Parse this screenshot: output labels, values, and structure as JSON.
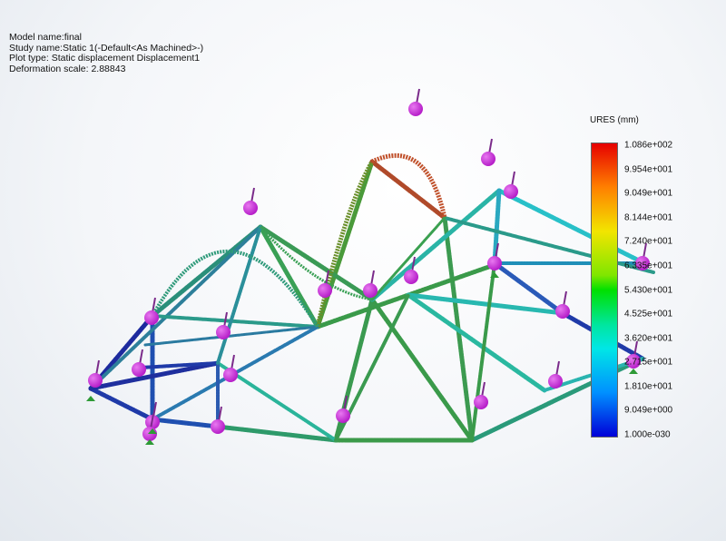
{
  "study_info": {
    "model_name": "Model name:final",
    "study_name": "Study name:Static 1(-Default<As Machined>-)",
    "plot_type": "Plot type: Static displacement Displacement1",
    "deformation_scale": "Deformation scale: 2.88843"
  },
  "legend": {
    "title": "URES (mm)",
    "labels": [
      "1.086e+002",
      "9.954e+001",
      "9.049e+001",
      "8.144e+001",
      "7.240e+001",
      "6.335e+001",
      "5.430e+001",
      "4.525e+001",
      "3.620e+001",
      "2.715e+001",
      "1.810e+001",
      "9.049e+000",
      "1.000e-030"
    ]
  },
  "colors": {
    "fixture_sphere": "#b61fc9",
    "fixture_arrow": "#2e9a36"
  }
}
